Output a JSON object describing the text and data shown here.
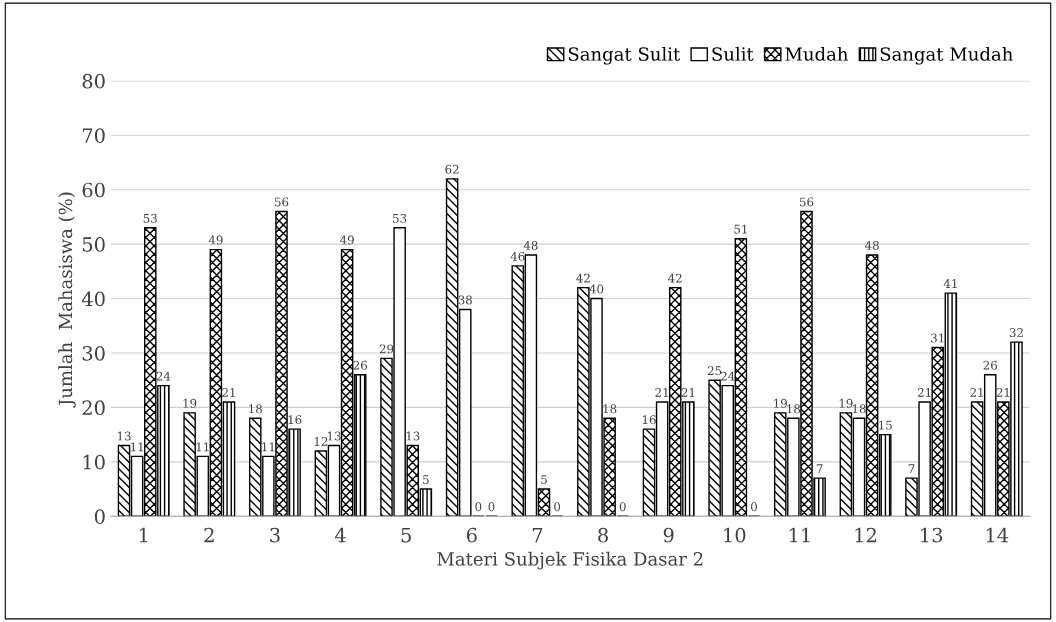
{
  "chart_data": {
    "type": "bar",
    "xlabel": "Materi Subjek Fisika Dasar 2",
    "ylabel": "Jumlah  Mahasiswa (%)",
    "categories": [
      "1",
      "2",
      "3",
      "4",
      "5",
      "6",
      "7",
      "8",
      "9",
      "10",
      "11",
      "12",
      "13",
      "14"
    ],
    "series": [
      {
        "name": "Sangat Sulit",
        "color": "#000000",
        "values": [
          13,
          19,
          18,
          12,
          29,
          62,
          46,
          42,
          16,
          25,
          19,
          19,
          7,
          21
        ]
      },
      {
        "name": "Sulit",
        "color": "#000000",
        "values": [
          11,
          11,
          11,
          13,
          53,
          38,
          48,
          40,
          21,
          24,
          18,
          18,
          21,
          26
        ]
      },
      {
        "name": "Mudah",
        "color": "#000000",
        "values": [
          53,
          49,
          56,
          49,
          13,
          0,
          5,
          18,
          42,
          51,
          56,
          48,
          31,
          21
        ]
      },
      {
        "name": "Sangat Mudah",
        "color": "#000000",
        "values": [
          24,
          21,
          16,
          26,
          5,
          0,
          0,
          0,
          21,
          0,
          7,
          15,
          41,
          32
        ]
      }
    ],
    "ylim": [
      0,
      80
    ],
    "yticks": [
      0,
      10,
      20,
      30,
      40,
      50,
      60,
      70,
      80
    ],
    "grid": "y",
    "legend": "top right",
    "data_labels": true
  }
}
